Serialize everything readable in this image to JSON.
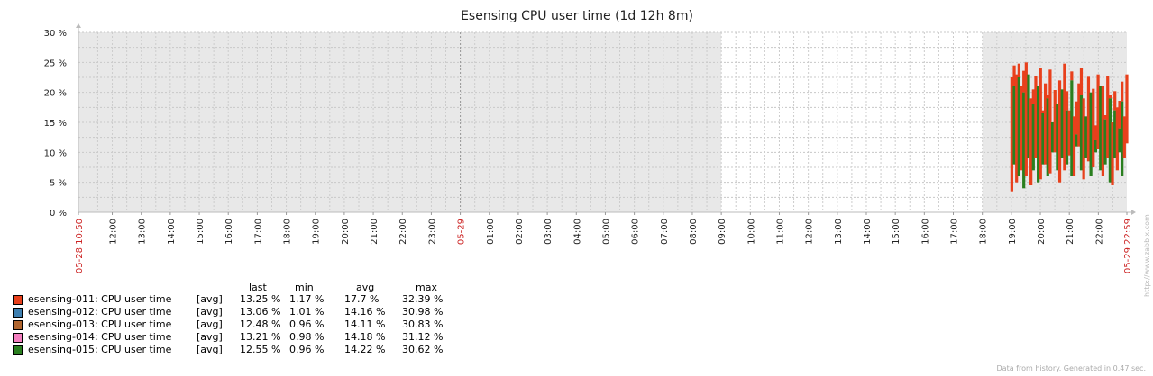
{
  "chart_data": {
    "type": "area",
    "title": "Esensing CPU user time (1d 12h 8m)",
    "ylim": [
      0,
      30
    ],
    "y_ticks": [
      "30 %",
      "25 %",
      "20 %",
      "15 %",
      "10 %",
      "5 %",
      "0 %"
    ],
    "x_start_label": "05-28 10:50",
    "x_mid_label": "05-29",
    "x_end_label": "05-29 22:59",
    "x_tick_labels": [
      "12:00",
      "13:00",
      "14:00",
      "15:00",
      "16:00",
      "17:00",
      "18:00",
      "19:00",
      "20:00",
      "21:00",
      "22:00",
      "23:00",
      "01:00",
      "02:00",
      "03:00",
      "04:00",
      "05:00",
      "06:00",
      "07:00",
      "08:00",
      "09:00",
      "10:00",
      "11:00",
      "12:00",
      "13:00",
      "14:00",
      "15:00",
      "16:00",
      "17:00",
      "18:00",
      "19:00",
      "20:00",
      "21:00",
      "22:00"
    ],
    "data_window": [
      "05-29 18:58",
      "05-29 22:59"
    ],
    "series": [
      {
        "name": "esensing-011: CPU user time",
        "color": "#E8401C",
        "stat": "[avg]",
        "last": "13.25 %",
        "min": "1.17 %",
        "avg": "17.7 %",
        "max": "32.39 %",
        "values": [
          22.5,
          24.5,
          23,
          24.8,
          21,
          23.6,
          25,
          21.4,
          19,
          20.5,
          22.8,
          18,
          24,
          17,
          21.5,
          19.5,
          23.8,
          15,
          20.4,
          16.5,
          22,
          19,
          24.8,
          20.2,
          17,
          23.5,
          16,
          18.5,
          21.5,
          24,
          19,
          15.5,
          22.6,
          18.2,
          20.6,
          14.5,
          23,
          17.8,
          21,
          16.2,
          22.8,
          19.5,
          15,
          20.2,
          17.5,
          18.6,
          21.8,
          16,
          23
        ]
      },
      {
        "name": "esensing-012: CPU user time",
        "color": "#3E7FB0",
        "stat": "[avg]",
        "last": "13.06 %",
        "min": "1.01 %",
        "avg": "14.16 %",
        "max": "30.98 %"
      },
      {
        "name": "esensing-013: CPU user time",
        "color": "#B0652F",
        "stat": "[avg]",
        "last": "12.48 %",
        "min": "0.96 %",
        "avg": "14.11 %",
        "max": "30.83 %"
      },
      {
        "name": "esensing-014: CPU user time",
        "color": "#F47FC0",
        "stat": "[avg]",
        "last": "13.21 %",
        "min": "0.98 %",
        "avg": "14.18 %",
        "max": "31.12 %"
      },
      {
        "name": "esensing-015: CPU user time",
        "color": "#2A7F1F",
        "stat": "[avg]",
        "last": "12.55 %",
        "min": "0.96 %",
        "avg": "14.22 %",
        "max": "30.62 %",
        "values": [
          3.5,
          21,
          5,
          22.5,
          7,
          20,
          6,
          23,
          4.5,
          18,
          9,
          21,
          5.5,
          16.5,
          8,
          19,
          6.5,
          15,
          10,
          18,
          5,
          20.5,
          7,
          17,
          9.5,
          22,
          6,
          13,
          11,
          19.5,
          5.5,
          16,
          8.5,
          20,
          7.5,
          12,
          10.5,
          21,
          6,
          15.5,
          9,
          19,
          4.5,
          17,
          7,
          14,
          18.5,
          9,
          11.5
        ],
        "values_low": [
          3.5,
          8,
          5,
          6,
          7,
          4,
          6,
          9,
          4.5,
          7,
          9,
          5,
          5.5,
          8,
          8,
          6,
          6.5,
          10,
          10,
          7,
          5,
          9,
          7,
          8,
          9.5,
          6,
          6,
          11,
          11,
          7,
          5.5,
          9,
          8.5,
          6,
          7.5,
          10,
          10.5,
          7,
          6,
          8,
          9,
          5,
          4.5,
          9,
          7,
          10,
          6,
          9,
          11.5
        ]
      }
    ]
  },
  "legend": {
    "headers": {
      "last": "last",
      "min": "min",
      "avg": "avg",
      "max": "max"
    }
  },
  "footer_text": "Data from history. Generated in 0.47 sec.",
  "side_url": "http://www.zabbix.com"
}
